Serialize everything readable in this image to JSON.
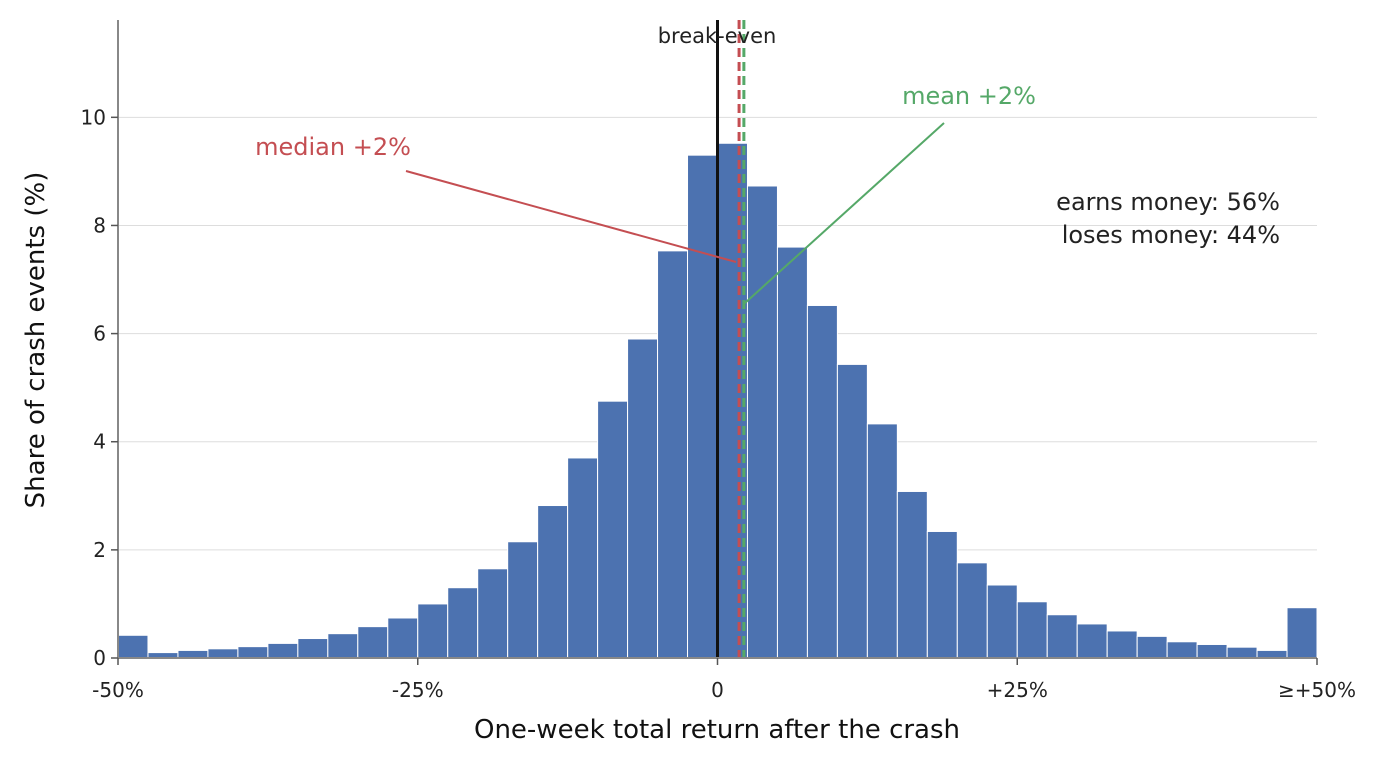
{
  "chart_data": {
    "type": "bar",
    "title": "",
    "xlabel": "One-week total return after the crash",
    "ylabel": "Share of crash events (%)",
    "xlim": [
      -50,
      50
    ],
    "ylim": [
      0,
      11.8
    ],
    "bin_width": 2.5,
    "bin_starts": [
      -50,
      -47.5,
      -45,
      -42.5,
      -40,
      -37.5,
      -35,
      -32.5,
      -30,
      -27.5,
      -25,
      -22.5,
      -20,
      -17.5,
      -15,
      -12.5,
      -10,
      -7.5,
      -5,
      -2.5,
      0,
      2.5,
      5,
      7.5,
      10,
      12.5,
      15,
      17.5,
      20,
      22.5,
      25,
      27.5,
      30,
      32.5,
      35,
      37.5,
      40,
      42.5,
      45,
      47.5
    ],
    "values": [
      0.42,
      0.1,
      0.14,
      0.17,
      0.21,
      0.27,
      0.36,
      0.45,
      0.58,
      0.74,
      1.0,
      1.3,
      1.65,
      2.15,
      2.82,
      3.7,
      4.75,
      5.9,
      7.53,
      9.3,
      9.52,
      8.73,
      7.6,
      6.52,
      5.43,
      4.33,
      3.08,
      2.34,
      1.76,
      1.35,
      1.04,
      0.8,
      0.63,
      0.5,
      0.4,
      0.3,
      0.25,
      0.2,
      0.14,
      0.93
    ],
    "x_ticks": [
      -50,
      -25,
      0,
      25,
      50
    ],
    "x_tick_labels": [
      "-50%",
      "-25%",
      "0",
      "+25%",
      "≥+50%"
    ],
    "y_ticks": [
      0,
      2,
      4,
      6,
      8,
      10
    ],
    "y_tick_labels": [
      "0",
      "2",
      "4",
      "6",
      "8",
      "10"
    ],
    "grid": "horizontal",
    "bar_color": "#4c72b0",
    "reference_lines": [
      {
        "label": "break-even",
        "x": 0,
        "color": "#111111",
        "style": "solid"
      },
      {
        "label": "median +2%",
        "x": 1.8,
        "color": "#c44e52",
        "style": "dashed"
      },
      {
        "label": "mean +2%",
        "x": 2.2,
        "color": "#55a868",
        "style": "dashed"
      }
    ],
    "annotations": {
      "earns": "earns money: 56%",
      "loses": "loses money: 44%"
    }
  }
}
